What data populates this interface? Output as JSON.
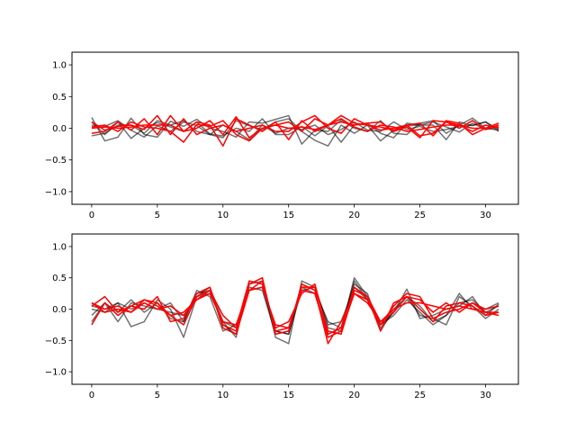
{
  "chart_data": [
    {
      "type": "line",
      "title": "",
      "xlabel": "",
      "ylabel": "",
      "xlim": [
        -1.5,
        32.5
      ],
      "ylim": [
        -1.2,
        1.2
      ],
      "xticks": [
        0,
        5,
        10,
        15,
        20,
        25,
        30
      ],
      "yticks": [
        -1.0,
        -0.5,
        0.0,
        0.5,
        1.0
      ],
      "xtick_labels": [
        "0",
        "5",
        "10",
        "15",
        "20",
        "25",
        "30"
      ],
      "ytick_labels": [
        "−1.0",
        "−0.5",
        "0.0",
        "0.5",
        "1.0"
      ],
      "grid": false,
      "x": [
        0,
        1,
        2,
        3,
        4,
        5,
        6,
        7,
        8,
        9,
        10,
        11,
        12,
        13,
        14,
        15,
        16,
        17,
        18,
        19,
        20,
        21,
        22,
        23,
        24,
        25,
        26,
        27,
        28,
        29,
        30,
        31
      ],
      "series": [
        {
          "color": "#000000",
          "opacity": 0.55,
          "values": [
            0.17,
            -0.2,
            -0.14,
            0.16,
            -0.1,
            -0.14,
            0.11,
            0.03,
            0.14,
            0.0,
            -0.05,
            -0.14,
            0.1,
            0.08,
            0.14,
            0.2,
            -0.25,
            -0.03,
            -0.05,
            0.13,
            0.0,
            -0.05,
            0.12,
            -0.08,
            -0.1,
            0.08,
            0.12,
            -0.08,
            0.05,
            0.16,
            0.0,
            -0.03
          ]
        },
        {
          "color": "#000000",
          "opacity": 0.55,
          "values": [
            0.05,
            0.03,
            0.12,
            -0.03,
            -0.14,
            0.04,
            -0.05,
            0.1,
            0.04,
            -0.1,
            -0.15,
            0.12,
            0.04,
            -0.02,
            0.1,
            0.15,
            -0.05,
            -0.19,
            -0.28,
            0.05,
            -0.08,
            0.05,
            -0.2,
            -0.03,
            0.04,
            0.05,
            0.05,
            -0.18,
            0.1,
            0.04,
            0.1,
            -0.05
          ]
        },
        {
          "color": "#000000",
          "opacity": 0.55,
          "values": [
            0.1,
            -0.1,
            0.1,
            -0.16,
            0.0,
            0.09,
            0.02,
            -0.05,
            0.1,
            -0.09,
            -0.12,
            0.0,
            -0.05,
            0.15,
            -0.1,
            -0.1,
            0.03,
            -0.12,
            0.04,
            -0.22,
            0.05,
            0.08,
            -0.08,
            -0.15,
            0.08,
            0.05,
            0.1,
            0.02,
            -0.06,
            0.08,
            -0.02,
            0.02
          ]
        },
        {
          "color": "#000000",
          "opacity": 0.55,
          "values": [
            -0.12,
            -0.08,
            0.05,
            0.05,
            -0.08,
            0.12,
            0.05,
            0.12,
            -0.05,
            -0.1,
            0.05,
            -0.05,
            -0.18,
            0.05,
            -0.08,
            0.0,
            -0.02,
            0.05,
            -0.1,
            -0.02,
            0.1,
            -0.03,
            -0.05,
            0.1,
            -0.02,
            0.03,
            -0.05,
            -0.02,
            0.03,
            0.05,
            0.1,
            -0.02
          ]
        },
        {
          "color": "#ff0000",
          "opacity": 1,
          "values": [
            0.02,
            0.05,
            -0.05,
            0.1,
            0.02,
            0.0,
            -0.05,
            -0.22,
            0.06,
            0.03,
            0.12,
            -0.1,
            -0.2,
            0.0,
            0.05,
            0.1,
            -0.05,
            0.15,
            0.05,
            0.2,
            0.08,
            0.05,
            -0.03,
            0.0,
            0.05,
            -0.12,
            -0.08,
            0.1,
            0.05,
            -0.05,
            0.05,
            0.0
          ]
        },
        {
          "color": "#ff0000",
          "opacity": 1,
          "values": [
            -0.08,
            -0.05,
            0.1,
            -0.03,
            0.15,
            -0.1,
            0.2,
            -0.05,
            0.1,
            0.05,
            -0.28,
            0.15,
            0.05,
            -0.05,
            0.1,
            -0.18,
            0.12,
            -0.05,
            0.05,
            0.1,
            0.05,
            0.08,
            0.1,
            -0.05,
            0.02,
            -0.15,
            0.12,
            0.1,
            0.0,
            0.12,
            -0.02,
            0.05
          ]
        },
        {
          "color": "#ff0000",
          "opacity": 1,
          "values": [
            0.1,
            -0.03,
            0.03,
            0.05,
            -0.02,
            0.2,
            -0.1,
            0.15,
            -0.1,
            0.0,
            0.05,
            -0.05,
            0.0,
            0.05,
            -0.05,
            -0.05,
            0.1,
            0.2,
            0.0,
            -0.08,
            0.15,
            0.05,
            0.02,
            -0.03,
            0.05,
            0.08,
            -0.12,
            0.12,
            0.08,
            -0.1,
            0.0,
            0.08
          ]
        },
        {
          "color": "#ff0000",
          "opacity": 1,
          "values": [
            0.0,
            0.02,
            0.0,
            0.02,
            0.05,
            0.05,
            0.05,
            -0.05,
            0.0,
            0.12,
            -0.1,
            0.18,
            -0.15,
            0.0,
            0.05,
            0.0,
            0.02,
            -0.02,
            0.05,
            0.15,
            0.02,
            -0.05,
            0.05,
            0.02,
            -0.05,
            -0.02,
            0.02,
            0.05,
            0.05,
            0.0,
            0.0,
            0.02
          ]
        }
      ]
    },
    {
      "type": "line",
      "title": "",
      "xlabel": "",
      "ylabel": "",
      "xlim": [
        -1.5,
        32.5
      ],
      "ylim": [
        -1.2,
        1.2
      ],
      "xticks": [
        0,
        5,
        10,
        15,
        20,
        25,
        30
      ],
      "yticks": [
        -1.0,
        -0.5,
        0.0,
        0.5,
        1.0
      ],
      "xtick_labels": [
        "0",
        "5",
        "10",
        "15",
        "20",
        "25",
        "30"
      ],
      "ytick_labels": [
        "−1.0",
        "−0.5",
        "0.0",
        "0.5",
        "1.0"
      ],
      "grid": false,
      "x": [
        0,
        1,
        2,
        3,
        4,
        5,
        6,
        7,
        8,
        9,
        10,
        11,
        12,
        13,
        14,
        15,
        16,
        17,
        18,
        19,
        20,
        21,
        22,
        23,
        24,
        25,
        26,
        27,
        28,
        29,
        30,
        31
      ],
      "series": [
        {
          "color": "#000000",
          "opacity": 0.55,
          "values": [
            -0.2,
            0.1,
            -0.05,
            0.15,
            -0.05,
            0.1,
            -0.15,
            -0.2,
            0.25,
            0.3,
            -0.25,
            -0.4,
            0.4,
            0.45,
            -0.45,
            -0.55,
            0.45,
            0.35,
            -0.3,
            -0.35,
            0.5,
            0.2,
            -0.25,
            -0.05,
            0.2,
            0.05,
            -0.2,
            -0.1,
            0.1,
            0.15,
            -0.05,
            0.05
          ]
        },
        {
          "color": "#000000",
          "opacity": 0.55,
          "values": [
            0.05,
            0.0,
            0.1,
            -0.28,
            -0.2,
            0.15,
            0.0,
            -0.45,
            0.2,
            0.35,
            -0.2,
            -0.45,
            0.45,
            0.4,
            -0.35,
            -0.4,
            0.4,
            0.3,
            -0.2,
            -0.3,
            0.45,
            0.15,
            -0.3,
            -0.05,
            0.32,
            -0.15,
            -0.1,
            0.0,
            0.05,
            0.2,
            -0.1,
            0.08
          ]
        },
        {
          "color": "#000000",
          "opacity": 0.55,
          "values": [
            0.0,
            -0.05,
            0.1,
            0.0,
            0.1,
            0.0,
            0.1,
            -0.2,
            0.3,
            0.2,
            -0.35,
            -0.25,
            0.35,
            0.3,
            -0.4,
            -0.35,
            0.35,
            0.25,
            -0.4,
            -0.3,
            0.4,
            0.25,
            -0.35,
            0.0,
            0.2,
            -0.1,
            -0.15,
            -0.25,
            0.2,
            0.05,
            -0.15,
            0.0
          ]
        },
        {
          "color": "#000000",
          "opacity": 0.55,
          "values": [
            -0.1,
            0.1,
            -0.2,
            0.1,
            0.05,
            0.0,
            -0.05,
            -0.1,
            0.2,
            0.25,
            -0.2,
            -0.3,
            0.3,
            0.35,
            -0.35,
            -0.4,
            0.3,
            0.35,
            -0.25,
            -0.2,
            0.35,
            0.15,
            -0.25,
            -0.1,
            0.15,
            -0.05,
            -0.25,
            -0.1,
            0.25,
            0.0,
            0.0,
            0.1
          ]
        },
        {
          "color": "#ff0000",
          "opacity": 1,
          "values": [
            -0.25,
            0.1,
            -0.1,
            0.05,
            0.15,
            0.05,
            -0.1,
            -0.05,
            0.15,
            0.3,
            -0.25,
            -0.35,
            0.4,
            0.5,
            -0.4,
            -0.35,
            0.4,
            0.3,
            -0.55,
            -0.2,
            0.25,
            0.15,
            -0.25,
            0.05,
            0.25,
            0.2,
            -0.15,
            -0.05,
            0.0,
            0.1,
            0.0,
            0.05
          ]
        },
        {
          "color": "#ff0000",
          "opacity": 1,
          "values": [
            0.05,
            0.2,
            -0.05,
            0.05,
            0.0,
            0.2,
            -0.2,
            -0.15,
            0.25,
            0.35,
            -0.3,
            -0.4,
            0.3,
            0.45,
            -0.35,
            -0.3,
            0.35,
            0.35,
            -0.35,
            -0.4,
            0.3,
            0.2,
            -0.35,
            0.1,
            0.2,
            0.0,
            -0.2,
            0.05,
            0.1,
            0.05,
            -0.1,
            -0.05
          ]
        },
        {
          "color": "#ff0000",
          "opacity": 1,
          "values": [
            0.1,
            -0.05,
            0.0,
            -0.05,
            0.15,
            0.1,
            -0.1,
            -0.25,
            0.2,
            0.3,
            -0.1,
            -0.3,
            0.45,
            0.4,
            -0.3,
            -0.2,
            0.25,
            0.4,
            -0.4,
            -0.3,
            0.35,
            0.2,
            -0.2,
            0.0,
            0.1,
            0.1,
            0.05,
            0.0,
            0.05,
            0.0,
            -0.05,
            -0.1
          ]
        },
        {
          "color": "#ff0000",
          "opacity": 1,
          "values": [
            0.1,
            0.0,
            0.05,
            -0.05,
            0.1,
            0.0,
            0.05,
            -0.1,
            0.15,
            0.25,
            -0.2,
            -0.25,
            0.3,
            0.35,
            -0.25,
            -0.3,
            0.3,
            0.25,
            -0.45,
            -0.35,
            0.25,
            0.1,
            -0.2,
            -0.05,
            0.2,
            0.15,
            -0.05,
            0.1,
            -0.05,
            0.1,
            -0.05,
            -0.05
          ]
        }
      ]
    }
  ]
}
